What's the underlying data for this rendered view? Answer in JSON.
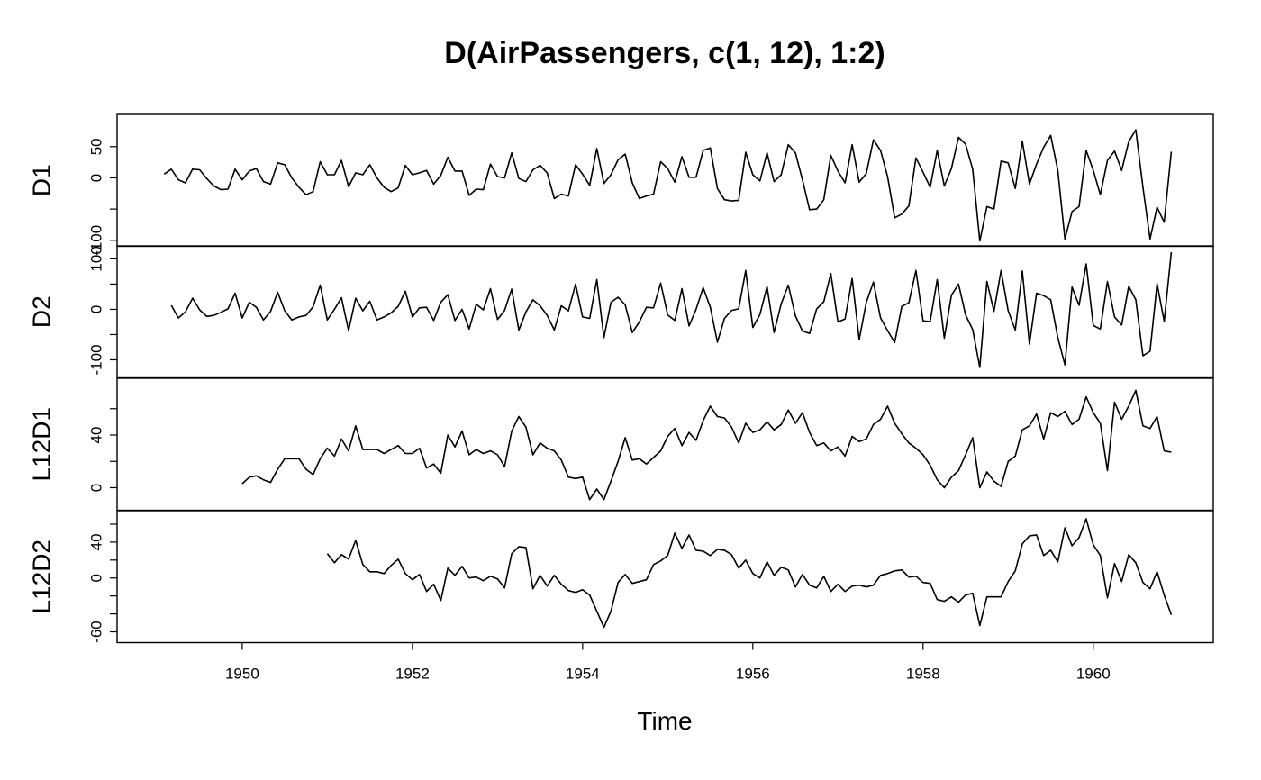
{
  "chart_data": {
    "type": "line",
    "title": "D(AirPassengers, c(1, 12), 1:2)",
    "xlabel": "Time",
    "xlim": [
      1948.53,
      1961.41
    ],
    "x_start": 1949,
    "x_step": 0.0833333,
    "x_ticks": [
      1950,
      1952,
      1954,
      1956,
      1958,
      1960
    ],
    "panels": [
      {
        "name": "D1",
        "ylim": [
          -101,
          93
        ],
        "y_ticks": [
          -100,
          -50,
          0,
          50
        ],
        "y_tick_labels": [
          "-100",
          "",
          "0",
          "50"
        ],
        "values": [
          null,
          6,
          14,
          -3,
          -8,
          14,
          13,
          -1,
          -13,
          -19,
          -18,
          14,
          -3,
          11,
          15,
          -6,
          -10,
          24,
          21,
          0,
          -15,
          -27,
          -22,
          26,
          5,
          5,
          28,
          -14,
          8,
          5,
          21,
          0,
          -15,
          -22,
          -16,
          20,
          5,
          8,
          12,
          -10,
          4,
          33,
          11,
          11,
          -28,
          -18,
          -19,
          22,
          2,
          0,
          40,
          -1,
          -6,
          13,
          20,
          8,
          -33,
          -26,
          -29,
          21,
          6,
          -12,
          47,
          -9,
          5,
          29,
          38,
          -8,
          -33,
          -29,
          -26,
          26,
          15,
          -7,
          34,
          1,
          1,
          44,
          48,
          -17,
          -35,
          -37,
          -36,
          41,
          5,
          -5,
          40,
          -6,
          5,
          53,
          40,
          -3,
          -51,
          -50,
          -35,
          36,
          11,
          -8,
          53,
          -7,
          7,
          61,
          44,
          2,
          -64,
          -58,
          -45,
          32,
          9,
          -15,
          44,
          -13,
          15,
          65,
          54,
          14,
          -101,
          -46,
          -50,
          27,
          24,
          -17,
          59,
          -10,
          22,
          49,
          68,
          12,
          -98,
          -54,
          -46,
          44,
          12,
          -27,
          28,
          43,
          12,
          58,
          77,
          -15,
          -98,
          -47,
          -71,
          42
        ]
      },
      {
        "name": "D2",
        "ylim": [
          -125,
          115
        ],
        "y_ticks": [
          -100,
          -50,
          0,
          50,
          100
        ],
        "y_tick_labels": [
          "-100",
          "",
          "0",
          "",
          "100"
        ],
        "values": [
          null,
          null,
          8,
          -17,
          -5,
          22,
          -1,
          -14,
          -12,
          -6,
          1,
          32,
          -17,
          14,
          4,
          -21,
          -4,
          34,
          -3,
          -21,
          -15,
          -12,
          5,
          48,
          -21,
          0,
          23,
          -42,
          22,
          -3,
          16,
          -21,
          -15,
          -7,
          6,
          36,
          -15,
          3,
          4,
          -22,
          14,
          29,
          -22,
          0,
          -39,
          10,
          -1,
          41,
          -20,
          -2,
          40,
          -41,
          -5,
          19,
          7,
          -12,
          -41,
          7,
          -3,
          50,
          -15,
          -18,
          59,
          -56,
          14,
          24,
          9,
          -46,
          -25,
          4,
          3,
          52,
          -11,
          -22,
          41,
          -33,
          0,
          43,
          4,
          -65,
          -18,
          -2,
          1,
          77,
          -36,
          -10,
          45,
          -46,
          11,
          48,
          -13,
          -43,
          -48,
          1,
          15,
          71,
          -25,
          -19,
          61,
          -60,
          14,
          54,
          -17,
          -42,
          -66,
          6,
          13,
          77,
          -23,
          -24,
          59,
          -57,
          28,
          50,
          -11,
          -40,
          -115,
          55,
          -4,
          77,
          -3,
          -41,
          76,
          -69,
          32,
          27,
          19,
          -56,
          -110,
          44,
          8,
          90,
          -32,
          -39,
          55,
          -15,
          -31,
          46,
          19,
          -92,
          -83,
          51,
          -24,
          113
        ]
      },
      {
        "name": "L12D1",
        "ylim": [
          -13,
          79
        ],
        "y_ticks": [
          0,
          20,
          40,
          60
        ],
        "y_tick_labels": [
          "0",
          "",
          "40",
          ""
        ],
        "values": [
          null,
          null,
          null,
          null,
          null,
          null,
          null,
          null,
          null,
          null,
          null,
          null,
          3,
          8,
          9,
          6,
          4,
          14,
          22,
          22,
          22,
          14,
          10,
          22,
          30,
          24,
          37,
          28,
          47,
          29,
          29,
          29,
          26,
          29,
          32,
          26,
          26,
          30,
          15,
          18,
          11,
          40,
          31,
          43,
          25,
          29,
          26,
          28,
          25,
          16,
          43,
          54,
          46,
          25,
          34,
          30,
          28,
          21,
          8,
          7,
          8,
          -9,
          -1,
          -9,
          5,
          20,
          38,
          21,
          22,
          18,
          23,
          28,
          39,
          45,
          32,
          42,
          36,
          51,
          62,
          54,
          53,
          46,
          34,
          49,
          42,
          44,
          50,
          44,
          48,
          59,
          49,
          57,
          42,
          32,
          34,
          28,
          31,
          24,
          39,
          35,
          37,
          48,
          52,
          62,
          49,
          41,
          34,
          30,
          25,
          17,
          6,
          0,
          8,
          13,
          25,
          38,
          0,
          12,
          5,
          1,
          20,
          24,
          44,
          47,
          56,
          37,
          57,
          54,
          58,
          48,
          52,
          69,
          57,
          49,
          13,
          65,
          52,
          62,
          74,
          47,
          45,
          54,
          28,
          27
        ]
      },
      {
        "name": "L12D2",
        "ylim": [
          -66,
          69
        ],
        "y_ticks": [
          -60,
          -40,
          -20,
          0,
          20,
          40,
          60
        ],
        "y_tick_labels": [
          "-60",
          "",
          "",
          "0",
          "",
          "40",
          ""
        ],
        "values": [
          null,
          null,
          null,
          null,
          null,
          null,
          null,
          null,
          null,
          null,
          null,
          null,
          null,
          null,
          null,
          null,
          null,
          null,
          null,
          null,
          null,
          null,
          null,
          null,
          27,
          17,
          26,
          21,
          42,
          15,
          7,
          7,
          5,
          14,
          21,
          5,
          -2,
          4,
          -15,
          -7,
          -25,
          11,
          3,
          13,
          0,
          1,
          -3,
          2,
          -1,
          -11,
          27,
          35,
          34,
          -12,
          3,
          -9,
          3,
          -7,
          -14,
          -16,
          -13,
          -19,
          -37,
          -55,
          -37,
          -5,
          4,
          -6,
          -4,
          -2,
          15,
          19,
          25,
          50,
          33,
          48,
          31,
          30,
          25,
          32,
          31,
          26,
          11,
          20,
          5,
          0,
          18,
          3,
          12,
          9,
          -10,
          4,
          -8,
          -11,
          2,
          -15,
          -7,
          -15,
          -9,
          -8,
          -10,
          -8,
          3,
          5,
          8,
          9,
          1,
          2,
          -5,
          -6,
          -24,
          -26,
          -21,
          -27,
          -19,
          -17,
          -53,
          -21,
          -21,
          -21,
          -4,
          8,
          38,
          47,
          48,
          25,
          31,
          18,
          56,
          36,
          45,
          66,
          37,
          25,
          -22,
          16,
          -4,
          26,
          17,
          -5,
          -12,
          7,
          -19,
          -41
        ]
      }
    ]
  }
}
